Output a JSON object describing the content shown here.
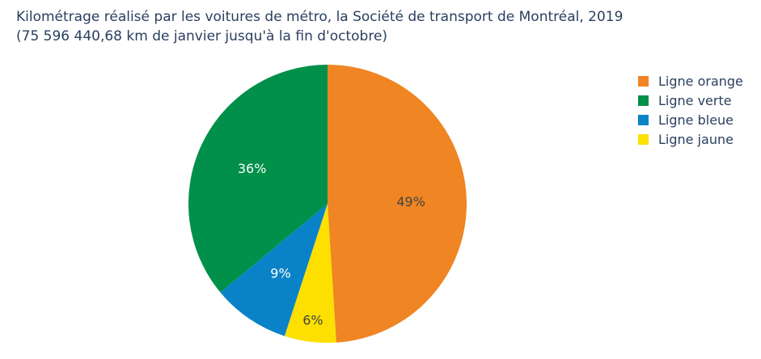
{
  "chart_data": {
    "type": "pie",
    "title": "Kilométrage réalisé par les voitures de métro, la Société de transport de Montréal, 2019",
    "subtitle": "(75 596 440,68 km de janvier jusqu'à la fin d'octobre)",
    "slices": [
      {
        "label": "Ligne orange",
        "value": 49,
        "display": "49%",
        "color": "#ef8523",
        "text_color": "#444444"
      },
      {
        "label": "Ligne jaune",
        "value": 6,
        "display": "6%",
        "color": "#fde000",
        "text_color": "#444444"
      },
      {
        "label": "Ligne bleue",
        "value": 9,
        "display": "9%",
        "color": "#0a82c8",
        "text_color": "#ffffff"
      },
      {
        "label": "Ligne verte",
        "value": 36,
        "display": "36%",
        "color": "#00904a",
        "text_color": "#ffffff"
      }
    ],
    "legend": {
      "position": "top-right",
      "items": [
        {
          "label": "Ligne orange",
          "color": "#ef8523"
        },
        {
          "label": "Ligne verte",
          "color": "#00904a"
        },
        {
          "label": "Ligne bleue",
          "color": "#0a82c8"
        },
        {
          "label": "Ligne jaune",
          "color": "#fde000"
        }
      ]
    }
  }
}
